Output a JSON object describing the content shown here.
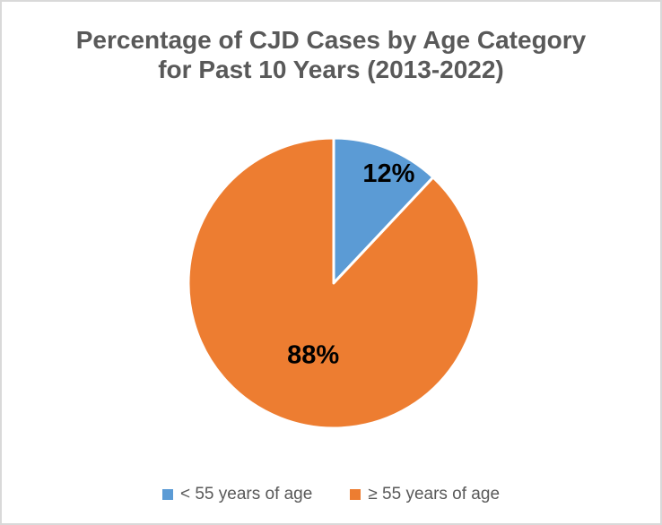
{
  "frame": {
    "background_color": "#FFFFFF",
    "border_color": "#D9D9D9"
  },
  "chart_data": {
    "type": "pie",
    "title": "Percentage of CJD Cases by Age Category for Past 10 Years (2013-2022)",
    "title_lines": [
      "Percentage of CJD Cases by Age Category",
      "for Past 10 Years (2013-2022)"
    ],
    "title_color": "#595959",
    "legend_position": "bottom",
    "legend_text_color": "#595959",
    "data_label_color": "#000000",
    "slice_border_color": "#FFFFFF",
    "start_angle_deg": 0,
    "direction": "clockwise",
    "slices": [
      {
        "label": "< 55 years of age",
        "value": 12,
        "percent_label": "12%",
        "color": "#5B9BD5",
        "label_angle_deg": 26.5,
        "label_r_frac": 0.85
      },
      {
        "label": "≥ 55 years of age",
        "value": 88,
        "percent_label": "88%",
        "color": "#ED7D31",
        "label_angle_deg": 196,
        "label_r_frac": 0.51
      }
    ]
  }
}
